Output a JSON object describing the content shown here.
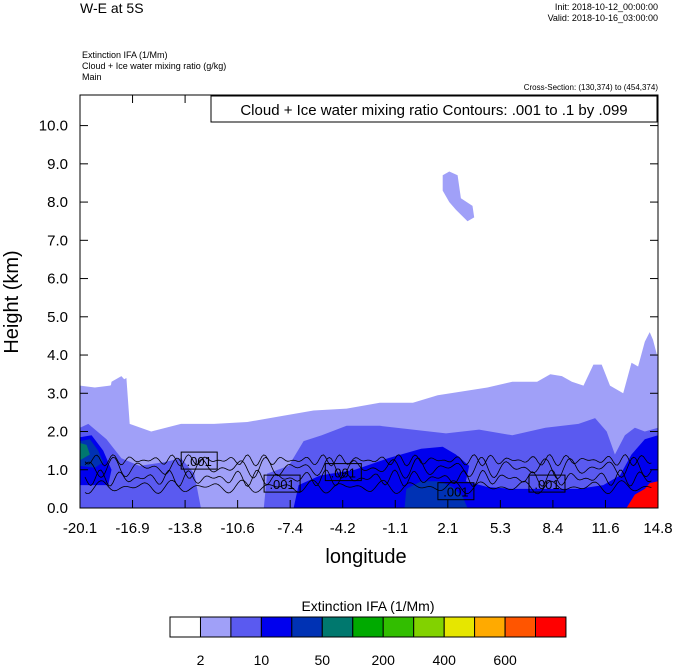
{
  "header": {
    "title": "W-E at 5S",
    "init": "Init: 2018-10-12_00:00:00",
    "valid": "Valid: 2018-10-16_03:00:00",
    "field_lines": [
      "Extinction IFA   (1/Mm)",
      "Cloud + Ice water mixing ratio   (g/kg)",
      "Main"
    ],
    "cross_section": "Cross-Section: (130,374) to (454,374)"
  },
  "chart_data": {
    "type": "heatmap",
    "ylabel": "Height (km)",
    "xlabel": "longitude",
    "xlim": [
      -20.1,
      14.8
    ],
    "ylim": [
      0,
      10.8
    ],
    "x_ticks": [
      "-20.1",
      "-16.9",
      "-13.8",
      "-10.6",
      "-7.4",
      "-4.2",
      "-1.1",
      "2.1",
      "5.3",
      "8.4",
      "11.6",
      "14.8"
    ],
    "y_ticks": [
      "0.0",
      "1.0",
      "2.0",
      "3.0",
      "4.0",
      "5.0",
      "6.0",
      "7.0",
      "8.0",
      "9.0",
      "10.0"
    ],
    "contour_title": "Cloud + Ice water mixing ratio Contours: .001 to .1 by .099",
    "contour_labels": [
      {
        "text": ".001",
        "x": -12.9,
        "y": 1.2
      },
      {
        "text": ".001",
        "x": -7.9,
        "y": 0.6
      },
      {
        "text": ".001",
        "x": -4.2,
        "y": 0.9
      },
      {
        "text": ".001",
        "x": 2.6,
        "y": 0.4
      },
      {
        "text": ".001",
        "x": 8.1,
        "y": 0.6
      }
    ],
    "regions": [
      {
        "level": 1,
        "points": [
          [
            -20.1,
            0
          ],
          [
            -20.1,
            3.2
          ],
          [
            -19.2,
            3.15
          ],
          [
            -18.3,
            3.2
          ],
          [
            -17.7,
            3.3
          ],
          [
            -17.3,
            3.4
          ],
          [
            -17.1,
            2.2
          ],
          [
            -15.8,
            2.0
          ],
          [
            -14,
            2.2
          ],
          [
            -12,
            2.2
          ],
          [
            -10,
            2.25
          ],
          [
            -8,
            2.4
          ],
          [
            -6,
            2.55
          ],
          [
            -4,
            2.6
          ],
          [
            -2,
            2.75
          ],
          [
            0,
            2.75
          ],
          [
            1.5,
            2.95
          ],
          [
            3,
            3.05
          ],
          [
            4.5,
            3.15
          ],
          [
            6,
            3.3
          ],
          [
            7.5,
            3.3
          ],
          [
            8.3,
            3.5
          ],
          [
            9,
            3.45
          ],
          [
            9.6,
            3.3
          ],
          [
            10.3,
            3.2
          ],
          [
            10.9,
            3.75
          ],
          [
            11.4,
            3.75
          ],
          [
            11.9,
            3.2
          ],
          [
            12.7,
            3.0
          ],
          [
            13.2,
            3.8
          ],
          [
            13.6,
            3.7
          ],
          [
            14.0,
            4.35
          ],
          [
            14.3,
            4.6
          ],
          [
            14.5,
            4.4
          ],
          [
            14.8,
            3.9
          ],
          [
            14.8,
            0
          ]
        ]
      },
      {
        "level": 1,
        "points": [
          [
            -18.6,
            2.2
          ],
          [
            -18.2,
            3.3
          ],
          [
            -17.6,
            3.45
          ],
          [
            -17.3,
            3.3
          ],
          [
            -17.5,
            2.2
          ]
        ]
      },
      {
        "level": 1,
        "points": [
          [
            1.8,
            8.7
          ],
          [
            2.2,
            8.8
          ],
          [
            2.7,
            8.7
          ],
          [
            2.9,
            8.1
          ],
          [
            3.6,
            7.9
          ],
          [
            3.7,
            7.6
          ],
          [
            3.3,
            7.5
          ],
          [
            2.6,
            7.8
          ],
          [
            2.2,
            8.0
          ],
          [
            1.8,
            8.3
          ]
        ]
      },
      {
        "level": 2,
        "points": [
          [
            -20.1,
            0
          ],
          [
            -20.1,
            2.1
          ],
          [
            -19.6,
            2.2
          ],
          [
            -18.5,
            1.8
          ],
          [
            -17.6,
            1.3
          ],
          [
            -16.5,
            1.1
          ],
          [
            -15.0,
            1.2
          ],
          [
            -14,
            1.3
          ],
          [
            -13.2,
            0.9
          ],
          [
            -12.8,
            0
          ],
          [
            -9,
            0
          ],
          [
            -8.8,
            0.9
          ],
          [
            -7.5,
            1.1
          ],
          [
            -6.6,
            1.75
          ],
          [
            -5.5,
            1.9
          ],
          [
            -4,
            2.15
          ],
          [
            -2,
            2.15
          ],
          [
            0,
            2.05
          ],
          [
            2,
            1.95
          ],
          [
            4,
            2.05
          ],
          [
            6,
            1.9
          ],
          [
            8,
            2.1
          ],
          [
            10,
            2.2
          ],
          [
            11,
            2.35
          ],
          [
            11.7,
            2.0
          ],
          [
            12.2,
            1.4
          ],
          [
            12.8,
            1.9
          ],
          [
            13.4,
            2.1
          ],
          [
            14.0,
            2.0
          ],
          [
            14.8,
            2.1
          ],
          [
            14.8,
            0
          ]
        ]
      },
      {
        "level": 3,
        "points": [
          [
            -20.1,
            0.6
          ],
          [
            -20.1,
            1.85
          ],
          [
            -19.4,
            1.9
          ],
          [
            -18.7,
            1.5
          ],
          [
            -18.2,
            1.0
          ],
          [
            -18.4,
            0.6
          ]
        ]
      },
      {
        "level": 3,
        "points": [
          [
            -7.2,
            0
          ],
          [
            -6.9,
            0.6
          ],
          [
            -5.6,
            0.85
          ],
          [
            -3.5,
            1.0
          ],
          [
            -1.5,
            1.3
          ],
          [
            0.5,
            1.55
          ],
          [
            1.8,
            1.6
          ],
          [
            2.6,
            1.4
          ],
          [
            3.4,
            1.1
          ],
          [
            3.2,
            0.7
          ],
          [
            4.5,
            0.55
          ],
          [
            6,
            0.5
          ],
          [
            8,
            0.5
          ],
          [
            10,
            0.5
          ],
          [
            11.5,
            0.6
          ],
          [
            12.5,
            0.85
          ],
          [
            13.2,
            1.4
          ],
          [
            14.0,
            1.8
          ],
          [
            14.8,
            1.9
          ],
          [
            14.8,
            0
          ]
        ]
      },
      {
        "level": 4,
        "points": [
          [
            -20.1,
            1.1
          ],
          [
            -20.1,
            1.75
          ],
          [
            -19.5,
            1.8
          ],
          [
            -19.0,
            1.5
          ],
          [
            -18.7,
            1.2
          ],
          [
            -19.2,
            1.05
          ]
        ]
      },
      {
        "level": 4,
        "points": [
          [
            -0.5,
            0
          ],
          [
            -0.4,
            0.5
          ],
          [
            0.5,
            0.7
          ],
          [
            1.6,
            0.7
          ],
          [
            2.4,
            0.55
          ],
          [
            3.0,
            0.3
          ],
          [
            3.3,
            0
          ]
        ]
      },
      {
        "level": 5,
        "points": [
          [
            -20.1,
            1.25
          ],
          [
            -20.1,
            1.7
          ],
          [
            -19.7,
            1.65
          ],
          [
            -19.5,
            1.4
          ]
        ]
      },
      {
        "level": 12,
        "points": [
          [
            12.9,
            0
          ],
          [
            13.4,
            0.35
          ],
          [
            14.0,
            0.5
          ],
          [
            14.3,
            0.65
          ],
          [
            14.8,
            0.7
          ],
          [
            14.8,
            0
          ]
        ]
      }
    ],
    "colorbar": {
      "title": "Extinction IFA  (1/Mm)",
      "colors": [
        "#ffffff",
        "#a0a0f8",
        "#5a5af0",
        "#0000ee",
        "#0032b4",
        "#00786e",
        "#00aa00",
        "#32be00",
        "#82d200",
        "#e6e600",
        "#ffaa00",
        "#ff5500",
        "#ff0000"
      ],
      "labels": [
        "2",
        "10",
        "50",
        "200",
        "400",
        "600"
      ]
    },
    "black_color": "#000000"
  }
}
